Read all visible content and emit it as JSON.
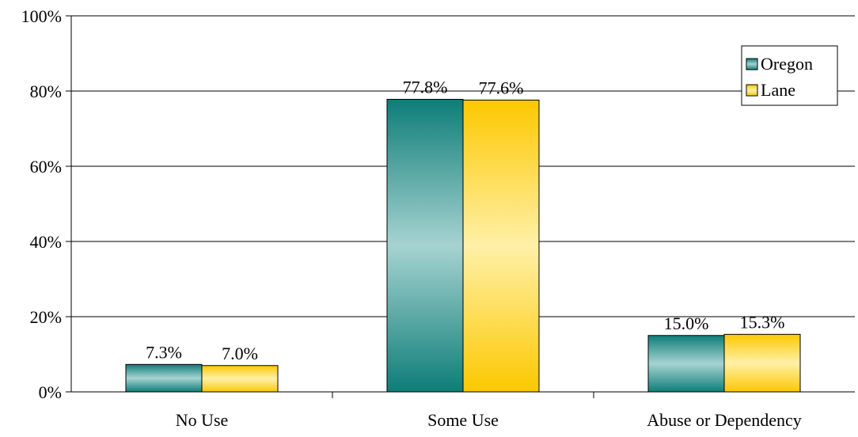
{
  "chart_data": {
    "type": "bar",
    "categories": [
      "No Use",
      "Some Use",
      "Abuse or Dependency"
    ],
    "series": [
      {
        "name": "Oregon",
        "values": [
          7.3,
          77.8,
          15.0
        ],
        "labels": [
          "7.3%",
          "77.8%",
          "15.0%"
        ]
      },
      {
        "name": "Lane",
        "values": [
          7.0,
          77.6,
          15.3
        ],
        "labels": [
          "7.0%",
          "77.6%",
          "15.3%"
        ]
      }
    ],
    "ylim": [
      0,
      100
    ],
    "yticks": [
      0,
      20,
      40,
      60,
      80,
      100
    ],
    "ytick_labels": [
      "0%",
      "20%",
      "40%",
      "60%",
      "80%",
      "100%"
    ],
    "grid": true,
    "legend_position": "top-right"
  },
  "colors": {
    "oregon_dark": "#0e7d78",
    "oregon_light": "#a6d3d1",
    "lane_dark": "#fcc800",
    "lane_light": "#fff0a8"
  }
}
